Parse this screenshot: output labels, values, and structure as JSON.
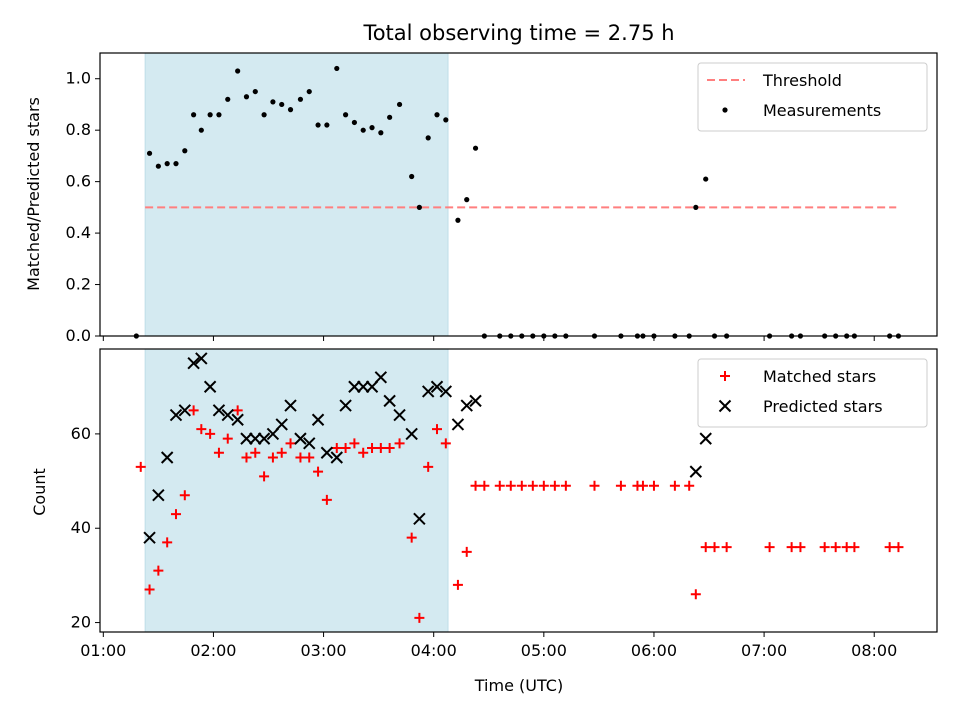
{
  "chart_data": {
    "title": "Total observing time = 2.75 h",
    "xlabel": "Time (UTC)",
    "x_ticks": [
      "01:00",
      "02:00",
      "03:00",
      "04:00",
      "05:00",
      "06:00",
      "07:00",
      "08:00"
    ],
    "x_range_hours": [
      0.97,
      8.57
    ],
    "shaded_region_hours": [
      1.38,
      4.13
    ],
    "shaded_color": "#d4eaf1",
    "panels": [
      {
        "type": "scatter",
        "ylabel": "Matched/Predicted stars",
        "ylim": [
          0,
          1.1
        ],
        "y_ticks": [
          "0.0",
          "0.2",
          "0.4",
          "0.6",
          "0.8",
          "1.0"
        ],
        "y_tick_values": [
          0,
          0.2,
          0.4,
          0.6,
          0.8,
          1.0
        ],
        "legend": {
          "position": "upper right",
          "entries": [
            "Threshold",
            "Measurements"
          ]
        },
        "threshold": {
          "name": "Threshold",
          "value": 0.5,
          "x_start": 1.38,
          "x_end": 8.2,
          "color": "#ff7f7f",
          "style": "dashed"
        },
        "series": [
          {
            "name": "Measurements",
            "color": "#000000",
            "marker": "dot",
            "points": [
              [
                1.3,
                0.0
              ],
              [
                1.42,
                0.71
              ],
              [
                1.5,
                0.66
              ],
              [
                1.58,
                0.67
              ],
              [
                1.66,
                0.67
              ],
              [
                1.74,
                0.72
              ],
              [
                1.82,
                0.86
              ],
              [
                1.89,
                0.8
              ],
              [
                1.97,
                0.86
              ],
              [
                2.05,
                0.86
              ],
              [
                2.13,
                0.92
              ],
              [
                2.22,
                1.03
              ],
              [
                2.3,
                0.93
              ],
              [
                2.38,
                0.95
              ],
              [
                2.46,
                0.86
              ],
              [
                2.54,
                0.91
              ],
              [
                2.62,
                0.9
              ],
              [
                2.7,
                0.88
              ],
              [
                2.79,
                0.92
              ],
              [
                2.87,
                0.95
              ],
              [
                2.95,
                0.82
              ],
              [
                3.03,
                0.82
              ],
              [
                3.12,
                1.04
              ],
              [
                3.2,
                0.86
              ],
              [
                3.28,
                0.83
              ],
              [
                3.36,
                0.8
              ],
              [
                3.44,
                0.81
              ],
              [
                3.52,
                0.79
              ],
              [
                3.6,
                0.85
              ],
              [
                3.69,
                0.9
              ],
              [
                3.8,
                0.62
              ],
              [
                3.87,
                0.5
              ],
              [
                3.95,
                0.77
              ],
              [
                4.03,
                0.86
              ],
              [
                4.11,
                0.84
              ],
              [
                4.22,
                0.45
              ],
              [
                4.3,
                0.53
              ],
              [
                4.38,
                0.73
              ],
              [
                4.46,
                0.0
              ],
              [
                4.6,
                0.0
              ],
              [
                4.7,
                0.0
              ],
              [
                4.8,
                0.0
              ],
              [
                4.9,
                0.0
              ],
              [
                5.0,
                0.0
              ],
              [
                5.1,
                0.0
              ],
              [
                5.2,
                0.0
              ],
              [
                5.46,
                0.0
              ],
              [
                5.7,
                0.0
              ],
              [
                5.85,
                0.0
              ],
              [
                5.9,
                0.0
              ],
              [
                6.0,
                0.0
              ],
              [
                6.19,
                0.0
              ],
              [
                6.32,
                0.0
              ],
              [
                6.38,
                0.5
              ],
              [
                6.47,
                0.61
              ],
              [
                6.55,
                0.0
              ],
              [
                6.66,
                0.0
              ],
              [
                7.05,
                0.0
              ],
              [
                7.25,
                0.0
              ],
              [
                7.33,
                0.0
              ],
              [
                7.55,
                0.0
              ],
              [
                7.65,
                0.0
              ],
              [
                7.75,
                0.0
              ],
              [
                7.82,
                0.0
              ],
              [
                8.14,
                0.0
              ],
              [
                8.22,
                0.0
              ]
            ]
          }
        ]
      },
      {
        "type": "scatter",
        "ylabel": "Count",
        "ylim": [
          18,
          78
        ],
        "y_ticks": [
          "20",
          "40",
          "60"
        ],
        "y_tick_values": [
          20,
          40,
          60
        ],
        "legend": {
          "position": "upper right",
          "entries": [
            "Matched stars",
            "Predicted stars"
          ]
        },
        "series": [
          {
            "name": "Matched stars",
            "color": "#ff0000",
            "marker": "plus",
            "points": [
              [
                1.34,
                53
              ],
              [
                1.42,
                27
              ],
              [
                1.5,
                31
              ],
              [
                1.58,
                37
              ],
              [
                1.66,
                43
              ],
              [
                1.74,
                47
              ],
              [
                1.82,
                65
              ],
              [
                1.89,
                61
              ],
              [
                1.97,
                60
              ],
              [
                2.05,
                56
              ],
              [
                2.13,
                59
              ],
              [
                2.22,
                65
              ],
              [
                2.3,
                55
              ],
              [
                2.38,
                56
              ],
              [
                2.46,
                51
              ],
              [
                2.54,
                55
              ],
              [
                2.62,
                56
              ],
              [
                2.7,
                58
              ],
              [
                2.79,
                55
              ],
              [
                2.87,
                55
              ],
              [
                2.95,
                52
              ],
              [
                3.03,
                46
              ],
              [
                3.12,
                57
              ],
              [
                3.2,
                57
              ],
              [
                3.28,
                58
              ],
              [
                3.36,
                56
              ],
              [
                3.44,
                57
              ],
              [
                3.52,
                57
              ],
              [
                3.6,
                57
              ],
              [
                3.69,
                58
              ],
              [
                3.8,
                38
              ],
              [
                3.87,
                21
              ],
              [
                3.95,
                53
              ],
              [
                4.03,
                61
              ],
              [
                4.11,
                58
              ],
              [
                4.22,
                28
              ],
              [
                4.3,
                35
              ],
              [
                4.38,
                49
              ],
              [
                4.46,
                49
              ],
              [
                4.6,
                49
              ],
              [
                4.7,
                49
              ],
              [
                4.8,
                49
              ],
              [
                4.9,
                49
              ],
              [
                5.0,
                49
              ],
              [
                5.1,
                49
              ],
              [
                5.2,
                49
              ],
              [
                5.46,
                49
              ],
              [
                5.7,
                49
              ],
              [
                5.85,
                49
              ],
              [
                5.9,
                49
              ],
              [
                6.0,
                49
              ],
              [
                6.19,
                49
              ],
              [
                6.32,
                49
              ],
              [
                6.38,
                26
              ],
              [
                6.47,
                36
              ],
              [
                6.55,
                36
              ],
              [
                6.66,
                36
              ],
              [
                7.05,
                36
              ],
              [
                7.25,
                36
              ],
              [
                7.33,
                36
              ],
              [
                7.55,
                36
              ],
              [
                7.65,
                36
              ],
              [
                7.75,
                36
              ],
              [
                7.82,
                36
              ],
              [
                8.14,
                36
              ],
              [
                8.22,
                36
              ]
            ]
          },
          {
            "name": "Predicted stars",
            "color": "#000000",
            "marker": "x",
            "points": [
              [
                1.42,
                38
              ],
              [
                1.5,
                47
              ],
              [
                1.58,
                55
              ],
              [
                1.66,
                64
              ],
              [
                1.74,
                65
              ],
              [
                1.82,
                75
              ],
              [
                1.89,
                76
              ],
              [
                1.97,
                70
              ],
              [
                2.05,
                65
              ],
              [
                2.13,
                64
              ],
              [
                2.22,
                63
              ],
              [
                2.3,
                59
              ],
              [
                2.38,
                59
              ],
              [
                2.46,
                59
              ],
              [
                2.54,
                60
              ],
              [
                2.62,
                62
              ],
              [
                2.7,
                66
              ],
              [
                2.79,
                59
              ],
              [
                2.87,
                58
              ],
              [
                2.95,
                63
              ],
              [
                3.03,
                56
              ],
              [
                3.12,
                55
              ],
              [
                3.2,
                66
              ],
              [
                3.28,
                70
              ],
              [
                3.36,
                70
              ],
              [
                3.44,
                70
              ],
              [
                3.52,
                72
              ],
              [
                3.6,
                67
              ],
              [
                3.69,
                64
              ],
              [
                3.8,
                60
              ],
              [
                3.87,
                42
              ],
              [
                3.95,
                69
              ],
              [
                4.03,
                70
              ],
              [
                4.11,
                69
              ],
              [
                4.22,
                62
              ],
              [
                4.3,
                66
              ],
              [
                4.38,
                67
              ],
              [
                6.38,
                52
              ],
              [
                6.47,
                59
              ]
            ]
          }
        ]
      }
    ]
  }
}
